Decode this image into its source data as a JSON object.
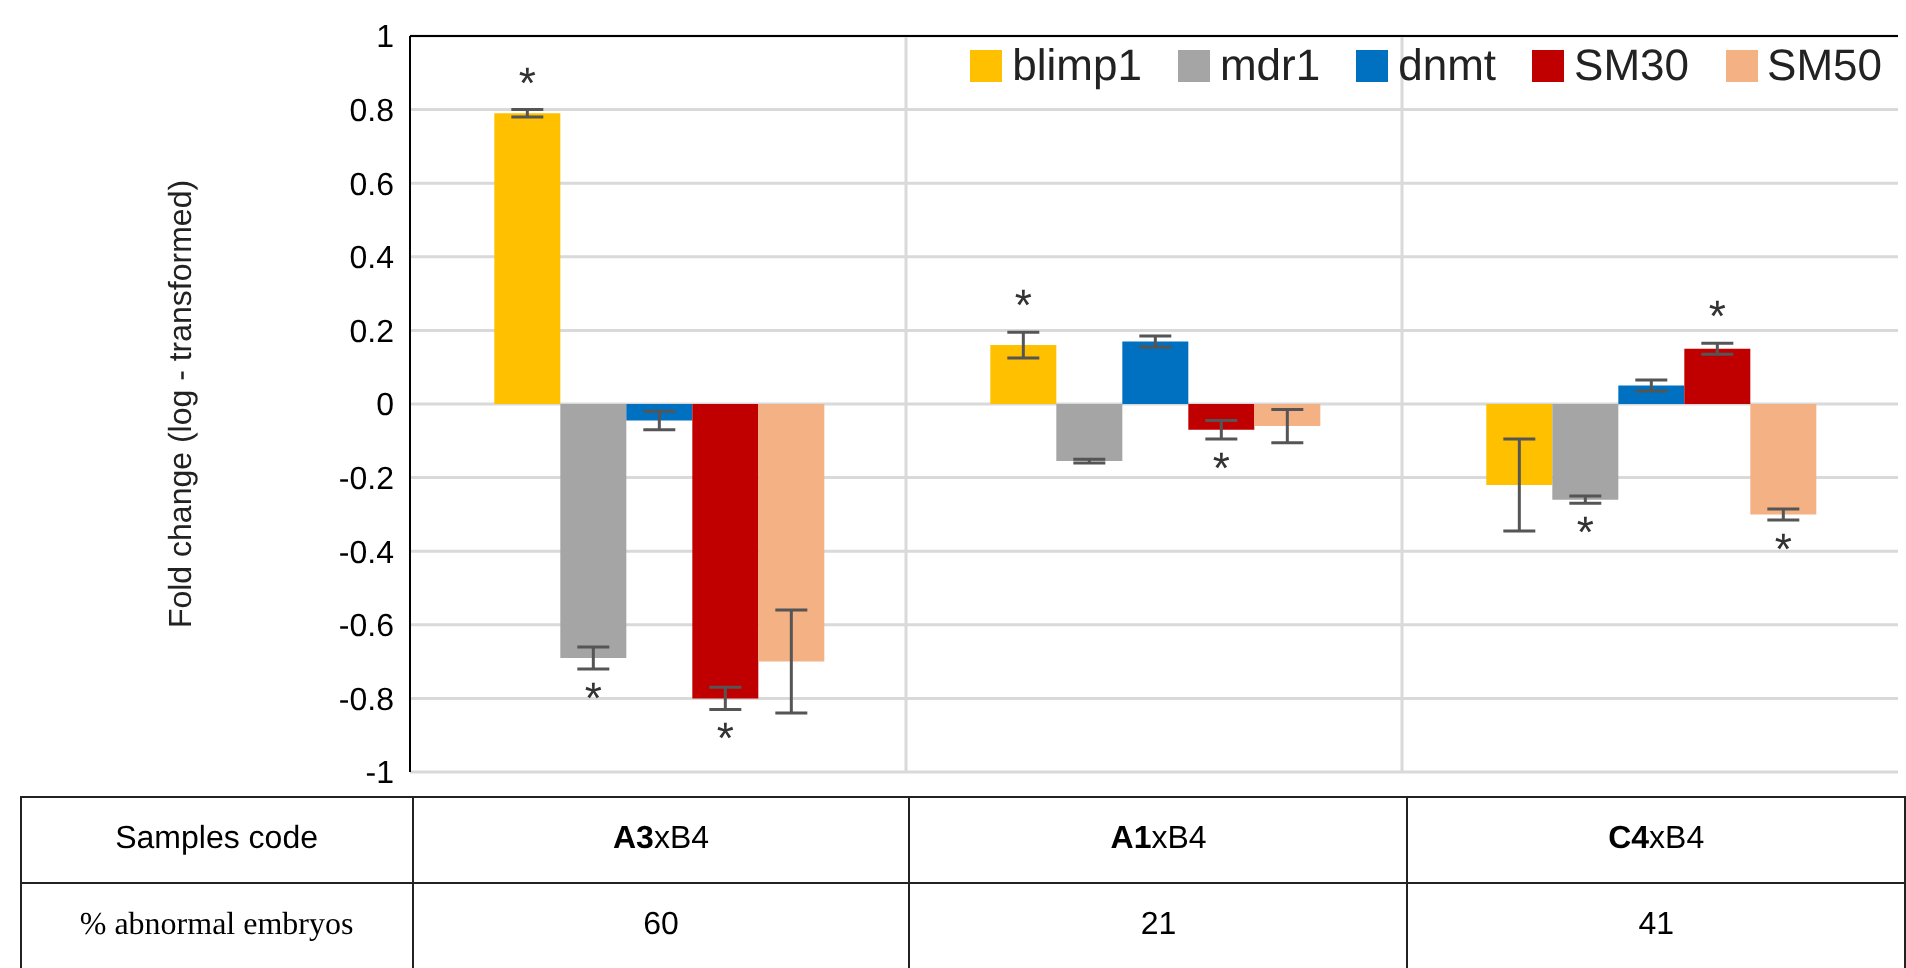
{
  "chart_data": {
    "type": "bar",
    "ylabel": "Fold change (log - transformed)",
    "categories": [
      "A3xB4",
      "A1xB4",
      "C4xB4"
    ],
    "series": [
      {
        "name": "blimp1",
        "color": "#ffc000",
        "values": [
          0.79,
          0.16,
          -0.22
        ],
        "errors": [
          0.01,
          0.035,
          0.125
        ],
        "value_labels": [
          "*",
          "*",
          null
        ]
      },
      {
        "name": "mdr1",
        "color": "#a5a5a5",
        "values": [
          -0.69,
          -0.155,
          -0.26
        ],
        "errors": [
          0.03,
          0.005,
          0.01
        ],
        "value_labels": [
          "*",
          null,
          "*"
        ]
      },
      {
        "name": "dnmt",
        "color": "#0070c0",
        "values": [
          -0.045,
          0.17,
          0.05
        ],
        "errors": [
          0.025,
          0.015,
          0.015
        ],
        "value_labels": [
          null,
          null,
          null
        ]
      },
      {
        "name": "SM30",
        "color": "#c00000",
        "values": [
          -0.8,
          -0.07,
          0.15
        ],
        "errors": [
          0.03,
          0.025,
          0.015
        ],
        "value_labels": [
          "*",
          "*",
          "*"
        ]
      },
      {
        "name": "SM50",
        "color": "#f4b183",
        "values": [
          -0.7,
          -0.06,
          -0.3
        ],
        "errors": [
          0.14,
          0.045,
          0.015
        ],
        "value_labels": [
          null,
          null,
          "*"
        ]
      }
    ],
    "ylim": [
      -1,
      1
    ],
    "yticks": [
      -1,
      -0.8,
      -0.6,
      -0.4,
      -0.2,
      0,
      0.2,
      0.4,
      0.6,
      0.8,
      1
    ],
    "grid": true,
    "legend": "top right",
    "annotations": [
      "Samples code",
      "% abnormal embryos",
      "60",
      "21",
      "41"
    ]
  }
}
